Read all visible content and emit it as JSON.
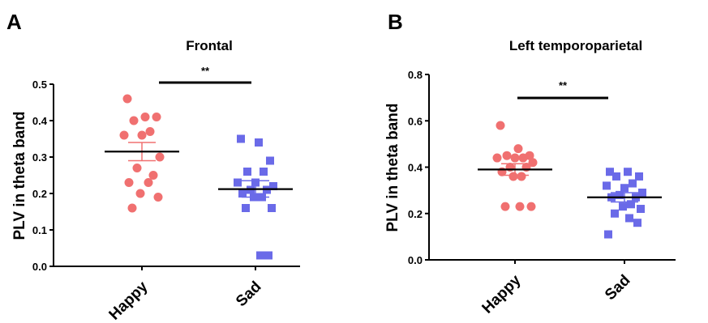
{
  "chart_data": [
    {
      "type": "scatter",
      "panel_label": "A",
      "title": "Frontal",
      "ylabel": "PLV in theta band",
      "xlabel": "",
      "ylim": [
        0,
        0.5
      ],
      "yticks": [
        "0.0",
        "0.1",
        "0.2",
        "0.3",
        "0.4",
        "0.5"
      ],
      "categories": [
        "Happy",
        "Sad"
      ],
      "significance": "**",
      "series": [
        {
          "category": "Happy",
          "color": "#f07070",
          "marker": "circle",
          "values": [
            0.46,
            0.41,
            0.41,
            0.4,
            0.37,
            0.36,
            0.36,
            0.3,
            0.27,
            0.25,
            0.23,
            0.23,
            0.2,
            0.19,
            0.16
          ],
          "mean": 0.315,
          "sem": [
            0.29,
            0.34
          ]
        },
        {
          "category": "Sad",
          "color": "#6a6ae8",
          "marker": "square",
          "values": [
            0.35,
            0.34,
            0.29,
            0.26,
            0.26,
            0.23,
            0.23,
            0.22,
            0.21,
            0.21,
            0.2,
            0.19,
            0.19,
            0.16,
            0.16,
            0.03,
            0.03
          ],
          "mean": 0.212,
          "sem": [
            0.19,
            0.235
          ]
        }
      ]
    },
    {
      "type": "scatter",
      "panel_label": "B",
      "title": "Left temporoparietal",
      "ylabel": "PLV in theta band",
      "xlabel": "",
      "ylim": [
        0,
        0.8
      ],
      "yticks": [
        "0.0",
        "0.2",
        "0.4",
        "0.6",
        "0.8"
      ],
      "categories": [
        "Happy",
        "Sad"
      ],
      "significance": "**",
      "series": [
        {
          "category": "Happy",
          "color": "#f07070",
          "marker": "circle",
          "values": [
            0.58,
            0.48,
            0.45,
            0.45,
            0.44,
            0.44,
            0.44,
            0.42,
            0.4,
            0.4,
            0.38,
            0.36,
            0.36,
            0.23,
            0.23,
            0.23
          ],
          "mean": 0.39,
          "sem": [
            0.365,
            0.415
          ]
        },
        {
          "category": "Sad",
          "color": "#6a6ae8",
          "marker": "square",
          "values": [
            0.38,
            0.38,
            0.36,
            0.36,
            0.33,
            0.32,
            0.31,
            0.29,
            0.28,
            0.27,
            0.27,
            0.24,
            0.23,
            0.22,
            0.2,
            0.18,
            0.16,
            0.11
          ],
          "mean": 0.27,
          "sem": [
            0.25,
            0.29
          ]
        }
      ]
    }
  ]
}
